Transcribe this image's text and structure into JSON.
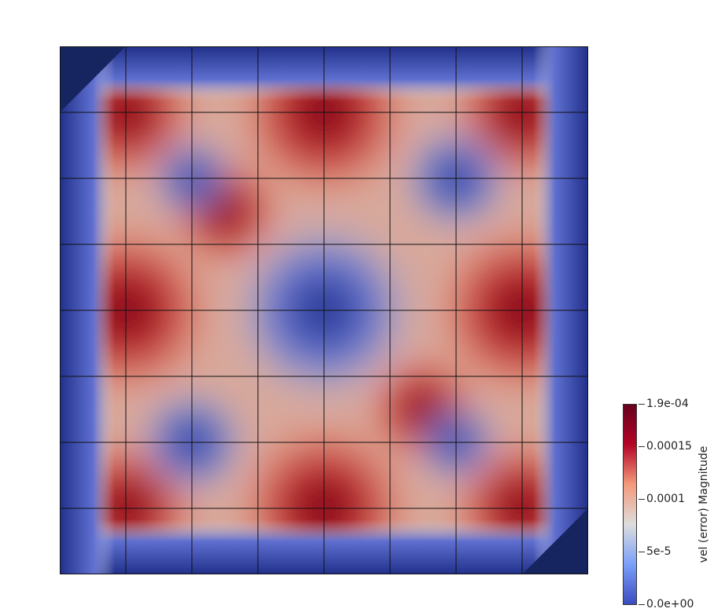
{
  "colorbar": {
    "title": "vel (error) Magnitude",
    "ticks": [
      {
        "label": "1.9e-04",
        "value": 0.00019
      },
      {
        "label": "0.00015",
        "value": 0.00015
      },
      {
        "label": "0.0001",
        "value": 0.0001
      },
      {
        "label": "5e-5",
        "value": 5e-05
      },
      {
        "label": "0.0e+00",
        "value": 0
      }
    ],
    "min": 0,
    "max": 0.00019
  },
  "grid": {
    "cells_x": 8,
    "cells_y": 8
  },
  "colors": {
    "low": "#1f2f7a",
    "mid": "#dddddd",
    "high": "#8b0a17",
    "gridline": "#111111"
  }
}
